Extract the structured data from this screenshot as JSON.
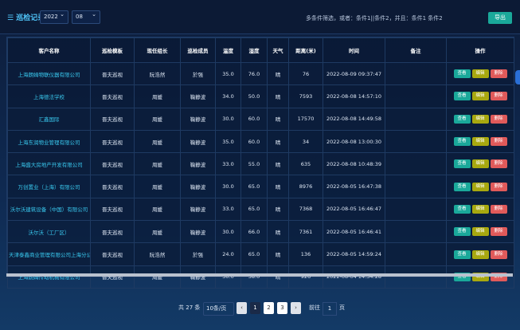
{
  "header": {
    "title": "巡检记录",
    "year": "2022",
    "month": "08",
    "filter_hint": "多条件筛选，或者：条件1||条件2，并且：条件1 条件2",
    "export": "导出"
  },
  "table": {
    "columns": [
      "客户名称",
      "巡检模板",
      "现任组长",
      "巡检成员",
      "温度",
      "湿度",
      "天气",
      "距离(米)",
      "时间",
      "备注",
      "操作"
    ],
    "actions": [
      "查看",
      "编辑",
      "删除"
    ],
    "rows": [
      [
        "上海朗姆物联仪器有限公司",
        "晋夫巡视",
        "阮浩然",
        "於强",
        "35.0",
        "76.0",
        "晴",
        "76",
        "2022-08-09 09:37:47"
      ],
      [
        "上海德法学校",
        "晋夫巡视",
        "周媛",
        "鞠静波",
        "34.0",
        "50.0",
        "晴",
        "7593",
        "2022-08-08 14:57:10"
      ],
      [
        "汇鑫国际",
        "晋夫巡视",
        "周媛",
        "鞠静波",
        "30.0",
        "60.0",
        "晴",
        "17570",
        "2022-08-08 14:49:58"
      ],
      [
        "上海东润物业管理有限公司",
        "晋夫巡视",
        "周媛",
        "鞠静波",
        "35.0",
        "60.0",
        "晴",
        "34",
        "2022-08-08 13:00:30"
      ],
      [
        "上海盛大房地产开发有限公司",
        "晋夫巡视",
        "周媛",
        "鞠静波",
        "33.0",
        "55.0",
        "晴",
        "635",
        "2022-08-08 10:48:39"
      ],
      [
        "万创置业（上海）有限公司",
        "晋夫巡视",
        "周媛",
        "鞠静波",
        "30.0",
        "65.0",
        "晴",
        "8976",
        "2022-08-05 16:47:38"
      ],
      [
        "沃尔沃建筑设备（中国）有限公司",
        "晋夫巡视",
        "周媛",
        "鞠静波",
        "33.0",
        "65.0",
        "晴",
        "7368",
        "2022-08-05 16:46:47"
      ],
      [
        "沃尔沃（工厂区）",
        "晋夫巡视",
        "周媛",
        "鞠静波",
        "30.0",
        "66.0",
        "晴",
        "7361",
        "2022-08-05 16:46:41"
      ],
      [
        "天津泰鑫商业管理有限公司上海分公司",
        "晋夫巡视",
        "阮浩然",
        "於强",
        "24.0",
        "65.0",
        "晴",
        "136",
        "2022-08-05 14:59:24"
      ],
      [
        "上海朗姆传动机械有限公司",
        "晋夫巡视",
        "周媛",
        "鞠静波",
        "30.0",
        "58.0",
        "晴",
        "926",
        "2022-08-04 14:34:28"
      ]
    ]
  },
  "pagination": {
    "total_prefix": "共",
    "total": "27",
    "total_suffix": "条",
    "page_size": "10条/页",
    "pages": [
      "1",
      "2",
      "3"
    ],
    "goto_prefix": "前往",
    "goto_value": "1",
    "goto_suffix": "页"
  }
}
